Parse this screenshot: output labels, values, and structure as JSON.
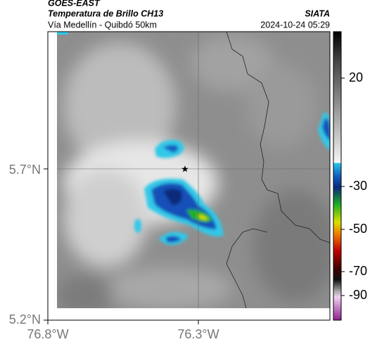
{
  "header": {
    "satellite": "GOES-EAST",
    "product": "Temperatura de Brillo CH13",
    "region": "Vía Medellín - Quibdó 50km",
    "source": "SIATA",
    "datetime": "2024-10-24 05:29"
  },
  "map": {
    "lat_labels": [
      "5.7°N",
      "5.2°N"
    ],
    "lon_labels": [
      "76.8°W",
      "76.3°W"
    ]
  },
  "colorbar": {
    "ticks": [
      "20",
      "-30",
      "-50",
      "-70",
      "-90"
    ]
  }
}
